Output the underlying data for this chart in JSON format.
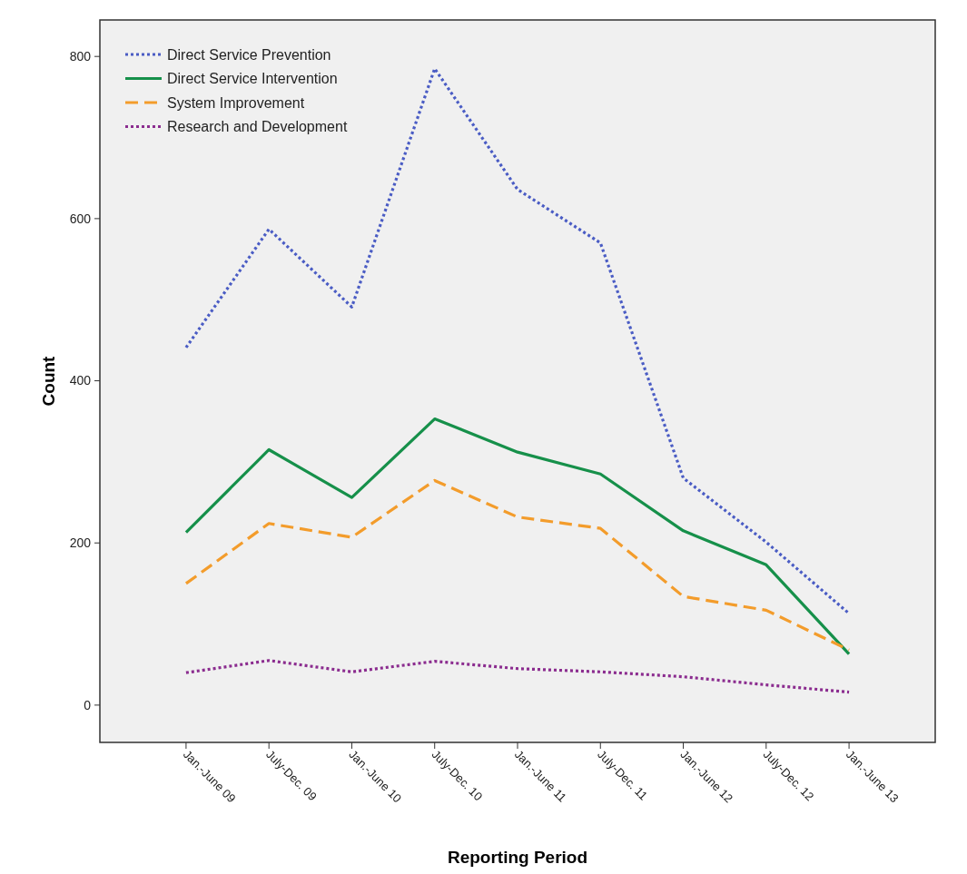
{
  "chart_data": {
    "type": "line",
    "xlabel": "Reporting Period",
    "ylabel": "Count",
    "categories": [
      "Jan.-June 09",
      "July-Dec. 09",
      "Jan.-June 10",
      "July-Dec. 10",
      "Jan.-June 11",
      "July-Dec. 11",
      "Jan.-June 12",
      "July-Dec. 12",
      "Jan.-June 13"
    ],
    "series": [
      {
        "name": "Direct Service Prevention",
        "color": "#4a5cc4",
        "line_style": "dotted",
        "values": [
          441,
          587,
          491,
          785,
          636,
          570,
          280,
          201,
          113
        ]
      },
      {
        "name": "Direct Service Intervention",
        "color": "#16904a",
        "line_style": "solid",
        "values": [
          213,
          315,
          256,
          353,
          312,
          285,
          215,
          173,
          63
        ]
      },
      {
        "name": "System Improvement",
        "color": "#f39c2b",
        "line_style": "dashed",
        "values": [
          150,
          224,
          207,
          277,
          232,
          218,
          134,
          117,
          68
        ]
      },
      {
        "name": "Research and Development",
        "color": "#8b2c8f",
        "line_style": "dotted",
        "values": [
          40,
          55,
          41,
          54,
          45,
          41,
          35,
          25,
          16
        ]
      }
    ],
    "ylim": [
      -46,
      845
    ],
    "yticks": [
      0,
      200,
      400,
      600,
      800
    ],
    "grid": false,
    "legend": "top left"
  }
}
